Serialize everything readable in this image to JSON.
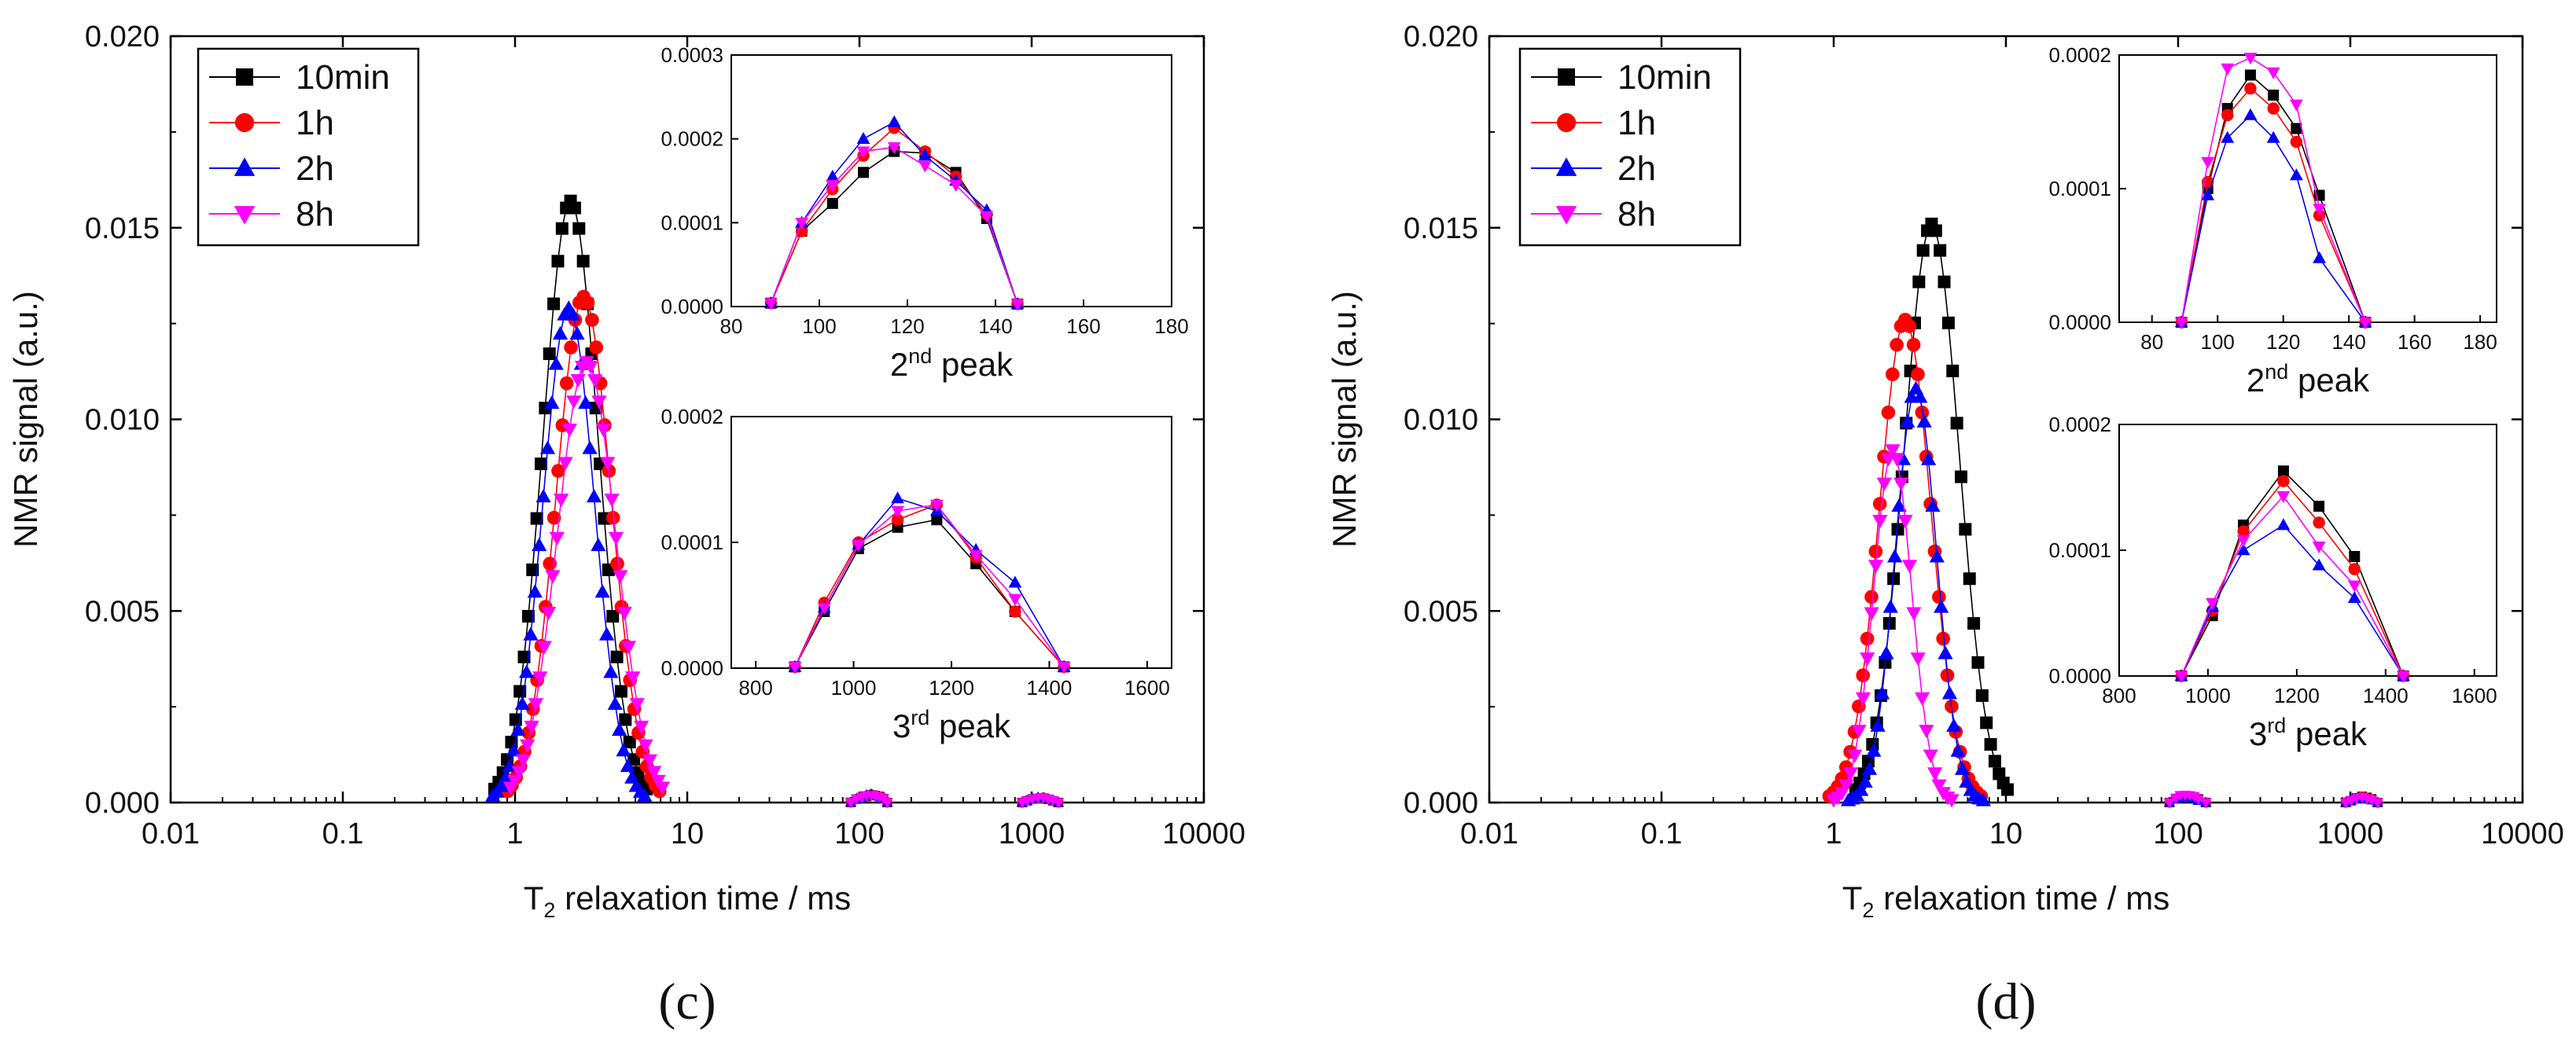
{
  "chart_data": [
    {
      "type": "scatter",
      "panel_label": "(c)",
      "xscale": "log",
      "xlim": [
        0.01,
        10000
      ],
      "ylim": [
        0,
        0.02
      ],
      "xticks": [
        "0.01",
        "0.1",
        "1",
        "10",
        "100",
        "1000",
        "10000"
      ],
      "yticks": [
        "0.000",
        "0.005",
        "0.010",
        "0.015",
        "0.020"
      ],
      "xlabel_main": "T",
      "xlabel_sub": "2",
      "xlabel_rest": " relaxation time / ms",
      "ylabel": "NMR signal (a.u.)",
      "legend": [
        "10min",
        "1h",
        "2h",
        "8h"
      ],
      "series_colors": [
        "#000000",
        "#ff0000",
        "#0000ff",
        "#ff00ff"
      ],
      "peak1": [
        {
          "peak": 2.1,
          "amp": 0.0157,
          "sigma": 0.16
        },
        {
          "peak": 2.5,
          "amp": 0.0132,
          "sigma": 0.16
        },
        {
          "peak": 2.05,
          "amp": 0.0129,
          "sigma": 0.15
        },
        {
          "peak": 2.6,
          "amp": 0.0115,
          "sigma": 0.17
        }
      ],
      "insets": [
        {
          "caption_main": "2",
          "caption_sup": "nd",
          "caption_rest": " peak",
          "xlim": [
            80,
            180
          ],
          "ylim": [
            0,
            0.0003
          ],
          "xticks": [
            "80",
            "100",
            "120",
            "140",
            "160",
            "180"
          ],
          "yticks": [
            "0.0000",
            "0.0001",
            "0.0002",
            "0.0003"
          ],
          "x": [
            89,
            96,
            103,
            110,
            117,
            124,
            131,
            138,
            145
          ],
          "series": [
            {
              "name": "10min",
              "values": [
                4e-06,
                9e-05,
                0.000123,
                0.00016,
                0.000185,
                0.000183,
                0.00016,
                0.000105,
                3e-06
              ]
            },
            {
              "name": "1h",
              "values": [
                4e-06,
                9e-05,
                0.00014,
                0.00018,
                0.000213,
                0.000185,
                0.000155,
                0.00011,
                3e-06
              ]
            },
            {
              "name": "2h",
              "values": [
                4e-06,
                0.0001,
                0.000155,
                0.0002,
                0.00022,
                0.00018,
                0.00015,
                0.000115,
                3e-06
              ]
            },
            {
              "name": "8h",
              "values": [
                4e-06,
                0.0001,
                0.000145,
                0.000185,
                0.00019,
                0.000168,
                0.000145,
                0.000108,
                3e-06
              ]
            }
          ]
        },
        {
          "caption_main": "3",
          "caption_sup": "rd",
          "caption_rest": " peak",
          "xlim": [
            750,
            1650
          ],
          "ylim": [
            0,
            0.0002
          ],
          "xticks": [
            "800",
            "1000",
            "1200",
            "1400",
            "1600"
          ],
          "yticks": [
            "0.0000",
            "0.0001",
            "0.0002"
          ],
          "x": [
            880,
            940,
            1010,
            1090,
            1170,
            1250,
            1330,
            1430
          ],
          "series": [
            {
              "name": "10min",
              "values": [
                1e-06,
                4.5e-05,
                9.5e-05,
                0.000112,
                0.000118,
                8.3e-05,
                4.5e-05,
                1e-06
              ]
            },
            {
              "name": "1h",
              "values": [
                1e-06,
                5.2e-05,
                0.0001,
                0.000118,
                0.00013,
                8.8e-05,
                4.5e-05,
                1e-06
              ]
            },
            {
              "name": "2h",
              "values": [
                1e-06,
                4.8e-05,
                9.8e-05,
                0.000135,
                0.000125,
                9.4e-05,
                6.8e-05,
                1e-06
              ]
            },
            {
              "name": "8h",
              "values": [
                1e-06,
                4.8e-05,
                9.8e-05,
                0.000125,
                0.00013,
                9e-05,
                5.5e-05,
                1e-06
              ]
            }
          ]
        }
      ]
    },
    {
      "type": "scatter",
      "panel_label": "(d)",
      "xscale": "log",
      "xlim": [
        0.01,
        10000
      ],
      "ylim": [
        0,
        0.02
      ],
      "xticks": [
        "0.01",
        "0.1",
        "1",
        "10",
        "100",
        "1000",
        "10000"
      ],
      "yticks": [
        "0.000",
        "0.005",
        "0.010",
        "0.015",
        "0.020"
      ],
      "xlabel_main": "T",
      "xlabel_sub": "2",
      "xlabel_rest": " relaxation time / ms",
      "ylabel": "NMR signal (a.u.)",
      "legend": [
        "10min",
        "1h",
        "2h",
        "8h"
      ],
      "series_colors": [
        "#000000",
        "#ff0000",
        "#0000ff",
        "#ff00ff"
      ],
      "peak1": [
        {
          "peak": 3.7,
          "amp": 0.0151,
          "sigma": 0.16
        },
        {
          "peak": 2.6,
          "amp": 0.0126,
          "sigma": 0.15
        },
        {
          "peak": 3.0,
          "amp": 0.0108,
          "sigma": 0.12
        },
        {
          "peak": 2.2,
          "amp": 0.0092,
          "sigma": 0.11
        }
      ],
      "insets": [
        {
          "caption_main": "2",
          "caption_sup": "nd",
          "caption_rest": " peak",
          "xlim": [
            70,
            185
          ],
          "ylim": [
            0,
            0.0002
          ],
          "xticks": [
            "80",
            "100",
            "120",
            "140",
            "160",
            "180"
          ],
          "yticks": [
            "0.0000",
            "0.0001",
            "0.0002"
          ],
          "x": [
            89,
            97,
            103,
            110,
            117,
            124,
            131,
            145
          ],
          "series": [
            {
              "name": "10min",
              "values": [
                0.0,
                0.0001,
                0.00016,
                0.000185,
                0.00017,
                0.000145,
                9.5e-05,
                0.0
              ]
            },
            {
              "name": "1h",
              "values": [
                0.0,
                0.000105,
                0.000155,
                0.000175,
                0.00016,
                0.000135,
                8e-05,
                0.0
              ]
            },
            {
              "name": "2h",
              "values": [
                0.0,
                9.5e-05,
                0.000138,
                0.000155,
                0.000138,
                0.00011,
                4.8e-05,
                0.0
              ]
            },
            {
              "name": "8h",
              "values": [
                0.0,
                0.00012,
                0.00019,
                0.000198,
                0.000187,
                0.000163,
                8.5e-05,
                0.0
              ]
            }
          ]
        },
        {
          "caption_main": "3",
          "caption_sup": "rd",
          "caption_rest": " peak",
          "xlim": [
            800,
            1650
          ],
          "ylim": [
            0,
            0.0002
          ],
          "xticks": [
            "800",
            "1000",
            "1200",
            "1400",
            "1600"
          ],
          "yticks": [
            "0.0000",
            "0.0001",
            "0.0002"
          ],
          "x": [
            940,
            1010,
            1080,
            1170,
            1250,
            1330,
            1440
          ],
          "series": [
            {
              "name": "10min",
              "values": [
                0.0,
                4.8e-05,
                0.00012,
                0.000163,
                0.000135,
                9.5e-05,
                0.0
              ]
            },
            {
              "name": "1h",
              "values": [
                0.0,
                5.2e-05,
                0.000115,
                0.000155,
                0.000122,
                8.5e-05,
                0.0
              ]
            },
            {
              "name": "2h",
              "values": [
                0.0,
                5.5e-05,
                0.0001,
                0.00012,
                8.8e-05,
                6.2e-05,
                0.0
              ]
            },
            {
              "name": "8h",
              "values": [
                0.0,
                5.8e-05,
                0.000108,
                0.000143,
                0.000103,
                7.2e-05,
                0.0
              ]
            }
          ]
        }
      ]
    }
  ]
}
